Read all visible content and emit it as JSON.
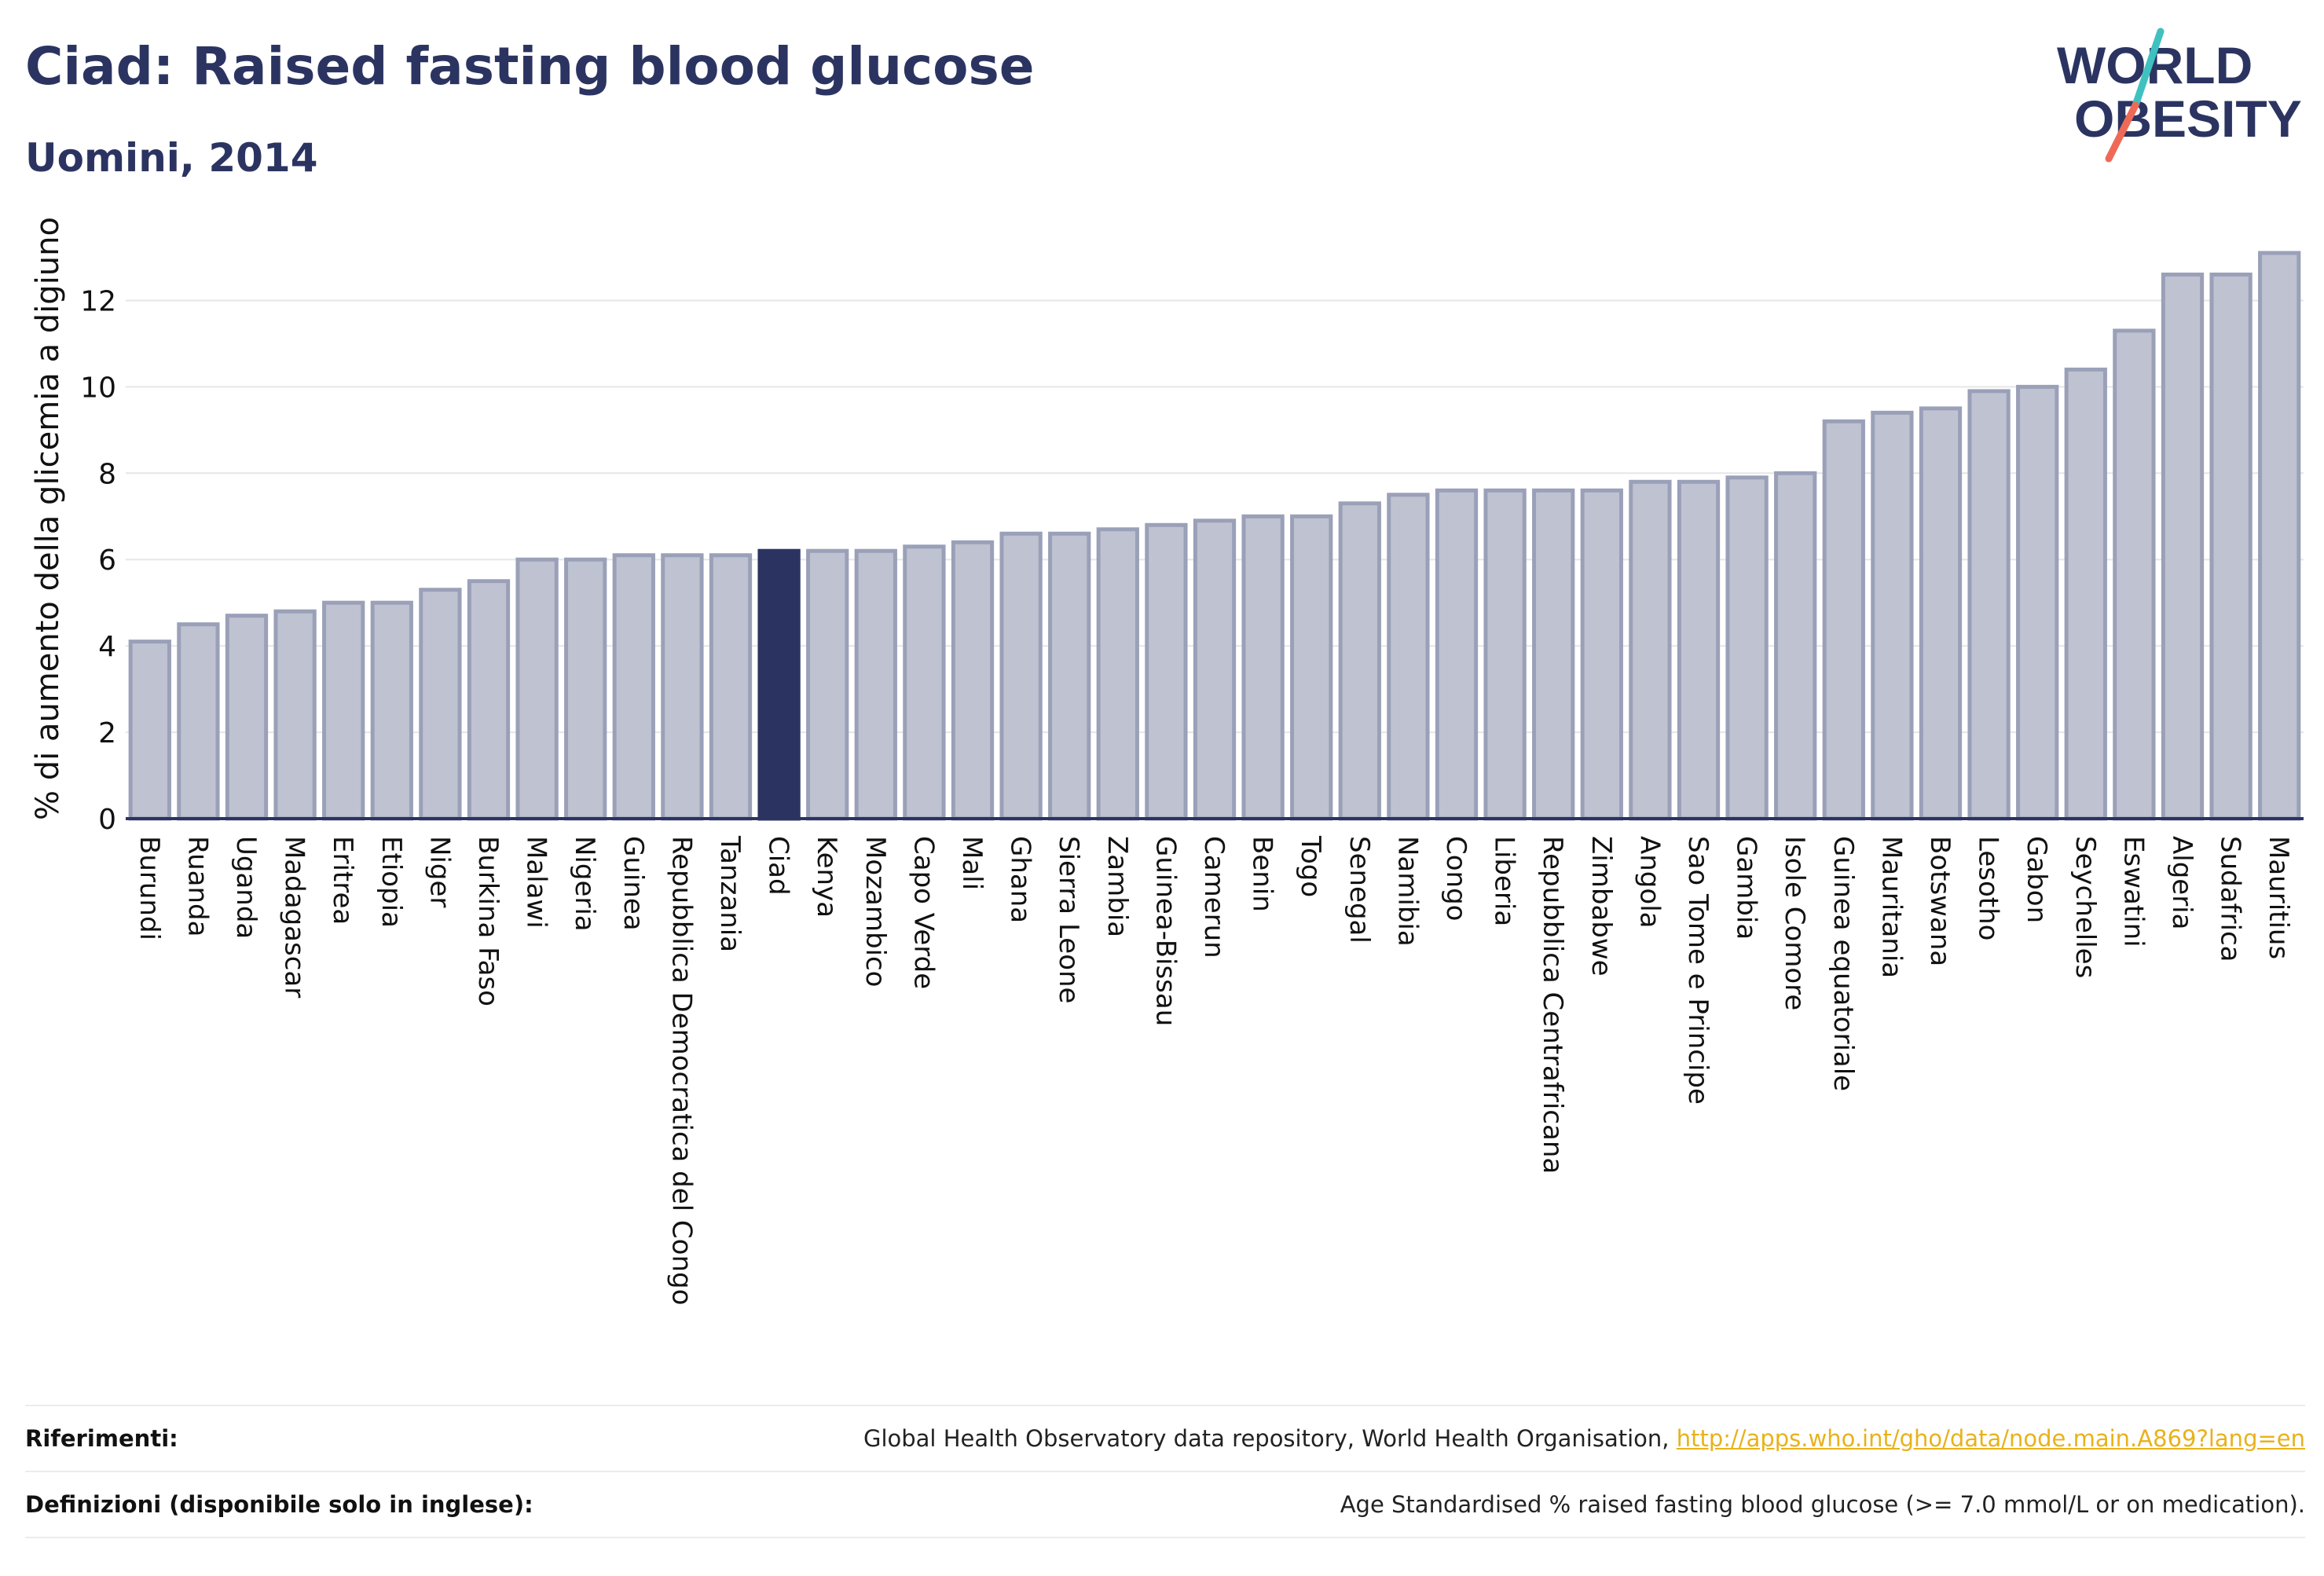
{
  "header": {
    "title": "Ciad: Raised fasting blood glucose",
    "subtitle": "Uomini, 2014",
    "logo_line1": "WORLD",
    "logo_line2": "OBESITY"
  },
  "chart_data": {
    "type": "bar",
    "ylabel": "% di aumento della glicemia a digiuno",
    "xlabel": "",
    "ylim": [
      0,
      13.5
    ],
    "yticks": [
      0,
      2,
      4,
      6,
      8,
      10,
      12
    ],
    "grid": true,
    "highlight": "Ciad",
    "colors": {
      "bar": "#bfc3d1",
      "bar_stroke": "#9aa0b8",
      "highlight": "#2b3461",
      "axis": "#2b3461",
      "grid": "#e6e6e6"
    },
    "categories": [
      "Burundi",
      "Ruanda",
      "Uganda",
      "Madagascar",
      "Eritrea",
      "Etiopia",
      "Niger",
      "Burkina Faso",
      "Malawi",
      "Nigeria",
      "Guinea",
      "Repubblica Democratica del Congo",
      "Tanzania",
      "Ciad",
      "Kenya",
      "Mozambico",
      "Capo Verde",
      "Mali",
      "Ghana",
      "Sierra Leone",
      "Zambia",
      "Guinea-Bissau",
      "Camerun",
      "Benin",
      "Togo",
      "Senegal",
      "Namibia",
      "Congo",
      "Liberia",
      "Repubblica Centrafricana",
      "Zimbabwe",
      "Angola",
      "Sao Tome e Principe",
      "Gambia",
      "Isole Comore",
      "Guinea equatoriale",
      "Mauritania",
      "Botswana",
      "Lesotho",
      "Gabon",
      "Seychelles",
      "Eswatini",
      "Algeria",
      "Sudafrica",
      "Mauritius"
    ],
    "values": [
      4.1,
      4.5,
      4.7,
      4.8,
      5.0,
      5.0,
      5.3,
      5.5,
      6.0,
      6.0,
      6.1,
      6.1,
      6.1,
      6.2,
      6.2,
      6.2,
      6.3,
      6.4,
      6.6,
      6.6,
      6.7,
      6.8,
      6.9,
      7.0,
      7.0,
      7.3,
      7.5,
      7.6,
      7.6,
      7.6,
      7.6,
      7.8,
      7.8,
      7.9,
      8.0,
      9.2,
      9.4,
      9.5,
      9.9,
      10.0,
      10.4,
      11.3,
      12.6,
      12.6,
      13.1
    ]
  },
  "footer": {
    "references_label": "Riferimenti:",
    "references_text": "Global Health Observatory data repository, World Health Organisation, ",
    "references_link": "http://apps.who.int/gho/data/node.main.A869?lang=en",
    "definitions_label": "Definizioni (disponibile solo in inglese):",
    "definitions_text": "Age Standardised % raised fasting blood glucose (>= 7.0 mmol/L or on medication)."
  }
}
